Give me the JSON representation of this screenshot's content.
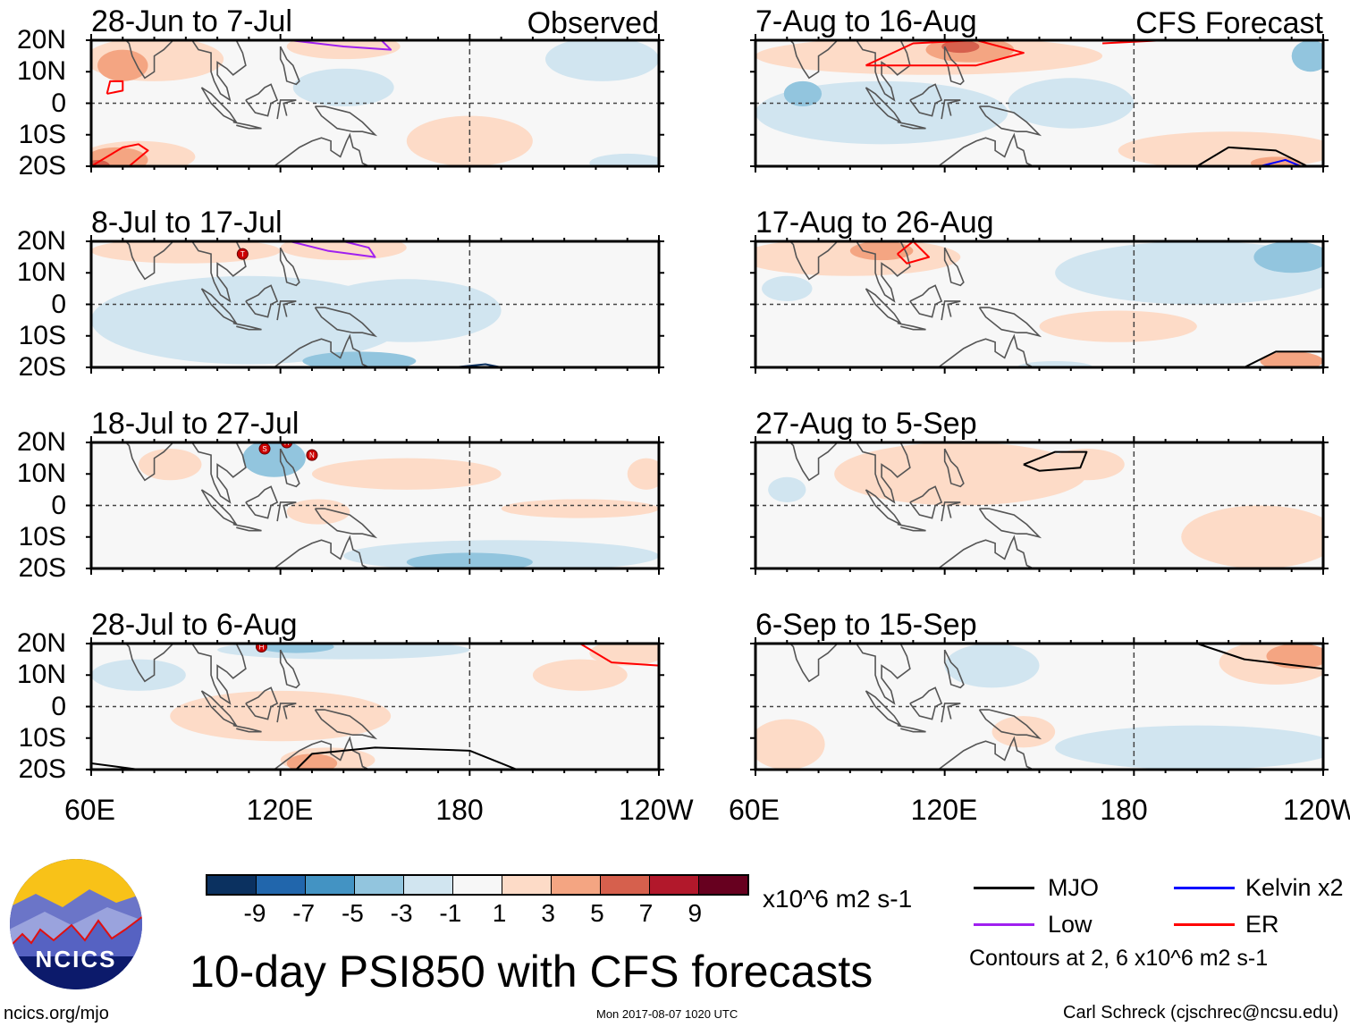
{
  "chart_data": {
    "type": "heatmap",
    "title": "10-day PSI850 with CFS forecasts",
    "units": "x10^6 m2 s-1",
    "lon_range": [
      60,
      240
    ],
    "lat_range": [
      -20,
      20
    ],
    "lat_ticks": [
      "20N",
      "10N",
      "0",
      "10S",
      "20S"
    ],
    "lon_ticks": [
      "60E",
      "120E",
      "180",
      "120W"
    ],
    "lon_tick_values": [
      60,
      120,
      180,
      240
    ],
    "colorbar": {
      "labels": [
        "-9",
        "-7",
        "-5",
        "-3",
        "-1",
        "1",
        "3",
        "5",
        "7",
        "9"
      ],
      "colors": [
        "#0b3160",
        "#2166ac",
        "#4393c3",
        "#92c5de",
        "#d1e5f0",
        "#f7f7f7",
        "#fddbc7",
        "#f4a582",
        "#d6604d",
        "#b2182b",
        "#67001f"
      ]
    },
    "legend": {
      "items": [
        {
          "label": "MJO",
          "color": "#000000"
        },
        {
          "label": "Kelvin x2",
          "color": "#0000ff"
        },
        {
          "label": "Low",
          "color": "#a020f0"
        },
        {
          "label": "ER",
          "color": "#ff0000"
        }
      ],
      "note": "Contours at 2, 6 x10^6 m2 s-1"
    },
    "panels": [
      {
        "title": "28-Jun to 7-Jul",
        "tag": "Observed",
        "blobs": [
          [
            80,
            14,
            22,
            7,
            2
          ],
          [
            70,
            12,
            8,
            5,
            4
          ],
          [
            75,
            -17,
            18,
            5,
            2
          ],
          [
            68,
            -18,
            10,
            4,
            4
          ],
          [
            62,
            -20,
            4,
            2,
            6
          ],
          [
            180,
            -12,
            20,
            8,
            2
          ],
          [
            140,
            5,
            16,
            6,
            -2
          ],
          [
            222,
            14,
            18,
            7,
            -2
          ],
          [
            230,
            -19,
            12,
            3,
            -2
          ],
          [
            140,
            18,
            18,
            4,
            2
          ]
        ],
        "contours": [
          {
            "c": "#a020f0",
            "pts": [
              [
                123,
                20
              ],
              [
                140,
                18
              ],
              [
                155,
                17
              ],
              [
                152,
                20
              ]
            ]
          },
          {
            "c": "#ff0000",
            "pts": [
              [
                65,
                3
              ],
              [
                70,
                4
              ],
              [
                70,
                7
              ],
              [
                66,
                7
              ],
              [
                65,
                3
              ]
            ]
          },
          {
            "c": "#ff0000",
            "pts": [
              [
                60,
                -20
              ],
              [
                70,
                -14
              ],
              [
                75,
                -13
              ],
              [
                78,
                -15
              ],
              [
                72,
                -20
              ]
            ]
          }
        ],
        "storms": []
      },
      {
        "title": "8-Jul to 17-Jul",
        "tag": "",
        "blobs": [
          [
            110,
            -5,
            50,
            14,
            -2
          ],
          [
            160,
            -2,
            30,
            10,
            -2
          ],
          [
            90,
            17,
            30,
            4,
            2
          ],
          [
            140,
            18,
            20,
            4,
            2
          ],
          [
            145,
            -18,
            18,
            3,
            -4
          ]
        ],
        "contours": [
          {
            "c": "#a020f0",
            "pts": [
              [
                123,
                20
              ],
              [
                135,
                17
              ],
              [
                150,
                15
              ],
              [
                148,
                18
              ],
              [
                140,
                20
              ]
            ]
          },
          {
            "c": "#0b3160",
            "pts": [
              [
                175,
                -20
              ],
              [
                185,
                -19
              ],
              [
                190,
                -20
              ]
            ]
          }
        ],
        "storms": [
          [
            108,
            16,
            "T"
          ]
        ]
      },
      {
        "title": "18-Jul to 27-Jul",
        "tag": "",
        "blobs": [
          [
            118,
            15,
            10,
            6,
            -3
          ],
          [
            160,
            10,
            30,
            5,
            2
          ],
          [
            190,
            -16,
            50,
            5,
            -2
          ],
          [
            180,
            -18,
            20,
            3,
            -4
          ],
          [
            132,
            -2,
            10,
            4,
            2
          ],
          [
            215,
            -1,
            25,
            3,
            2
          ],
          [
            85,
            13,
            10,
            5,
            2
          ],
          [
            236,
            10,
            6,
            5,
            2
          ]
        ],
        "contours": [],
        "storms": [
          [
            115,
            18,
            "S"
          ],
          [
            122,
            20,
            "H"
          ],
          [
            130,
            16,
            "N"
          ]
        ]
      },
      {
        "title": "28-Jul to 6-Aug",
        "tag": "",
        "blobs": [
          [
            140,
            18,
            40,
            3,
            -2
          ],
          [
            125,
            19,
            12,
            2,
            -4
          ],
          [
            120,
            -3,
            35,
            8,
            2
          ],
          [
            135,
            -17,
            15,
            4,
            2
          ],
          [
            130,
            -18,
            8,
            3,
            4
          ],
          [
            215,
            10,
            15,
            5,
            2
          ],
          [
            230,
            17,
            12,
            4,
            2
          ],
          [
            75,
            10,
            15,
            5,
            -2
          ]
        ],
        "contours": [
          {
            "c": "#000000",
            "pts": [
              [
                125,
                -20
              ],
              [
                130,
                -15
              ],
              [
                150,
                -13
              ],
              [
                180,
                -14
              ],
              [
                195,
                -20
              ]
            ]
          },
          {
            "c": "#ff0000",
            "pts": [
              [
                215,
                20
              ],
              [
                225,
                14
              ],
              [
                240,
                13
              ]
            ]
          },
          {
            "c": "#000000",
            "pts": [
              [
                60,
                -18
              ],
              [
                75,
                -20
              ]
            ]
          }
        ],
        "storms": [
          [
            114,
            19,
            "H"
          ]
        ]
      },
      {
        "title": "7-Aug to 16-Aug",
        "tag": "CFS Forecast",
        "blobs": [
          [
            100,
            -3,
            40,
            10,
            -2
          ],
          [
            75,
            3,
            6,
            4,
            -4
          ],
          [
            160,
            0,
            20,
            8,
            -2
          ],
          [
            115,
            15,
            55,
            6,
            2
          ],
          [
            128,
            17,
            14,
            4,
            4
          ],
          [
            125,
            18,
            6,
            2,
            6
          ],
          [
            210,
            -15,
            35,
            6,
            2
          ],
          [
            225,
            -19,
            8,
            2,
            5
          ],
          [
            236,
            15,
            6,
            5,
            -3
          ]
        ],
        "contours": [
          {
            "c": "#ff0000",
            "pts": [
              [
                95,
                12
              ],
              [
                110,
                19
              ],
              [
                130,
                20
              ],
              [
                145,
                16
              ],
              [
                130,
                12
              ],
              [
                95,
                12
              ]
            ]
          },
          {
            "c": "#000000",
            "pts": [
              [
                200,
                -20
              ],
              [
                210,
                -14
              ],
              [
                225,
                -15
              ],
              [
                235,
                -20
              ]
            ]
          },
          {
            "c": "#0000ff",
            "pts": [
              [
                220,
                -20
              ],
              [
                228,
                -18
              ],
              [
                233,
                -20
              ]
            ]
          },
          {
            "c": "#ff0000",
            "pts": [
              [
                170,
                19
              ],
              [
                190,
                20
              ]
            ]
          }
        ],
        "storms": []
      },
      {
        "title": "17-Aug to 26-Aug",
        "tag": "",
        "blobs": [
          [
            90,
            15,
            35,
            6,
            2
          ],
          [
            100,
            17,
            10,
            3,
            4
          ],
          [
            200,
            10,
            45,
            10,
            -2
          ],
          [
            230,
            15,
            12,
            5,
            -4
          ],
          [
            175,
            -7,
            25,
            5,
            2
          ],
          [
            230,
            -18,
            10,
            3,
            4
          ],
          [
            70,
            5,
            8,
            4,
            -2
          ],
          [
            155,
            -20,
            12,
            2,
            -2
          ]
        ],
        "contours": [
          {
            "c": "#ff0000",
            "pts": [
              [
                105,
                16
              ],
              [
                110,
                20
              ],
              [
                115,
                15
              ],
              [
                108,
                13
              ],
              [
                105,
                16
              ]
            ]
          },
          {
            "c": "#000000",
            "pts": [
              [
                215,
                -20
              ],
              [
                225,
                -15
              ],
              [
                240,
                -15
              ]
            ]
          }
        ],
        "storms": []
      },
      {
        "title": "27-Aug to 5-Sep",
        "tag": "",
        "blobs": [
          [
            125,
            10,
            40,
            10,
            2
          ],
          [
            70,
            5,
            6,
            4,
            -2
          ],
          [
            220,
            -10,
            25,
            10,
            2
          ],
          [
            165,
            13,
            12,
            5,
            2
          ]
        ],
        "contours": [
          {
            "c": "#000000",
            "pts": [
              [
                145,
                13
              ],
              [
                155,
                17
              ],
              [
                165,
                17
              ],
              [
                163,
                12
              ],
              [
                150,
                11
              ],
              [
                145,
                13
              ]
            ]
          }
        ],
        "storms": []
      },
      {
        "title": "6-Sep to 15-Sep",
        "tag": "",
        "blobs": [
          [
            225,
            14,
            18,
            7,
            2
          ],
          [
            232,
            16,
            10,
            4,
            4
          ],
          [
            135,
            13,
            15,
            7,
            -2
          ],
          [
            200,
            -13,
            45,
            7,
            -2
          ],
          [
            70,
            -12,
            12,
            8,
            2
          ],
          [
            145,
            -8,
            10,
            5,
            2
          ]
        ],
        "contours": [
          {
            "c": "#000000",
            "pts": [
              [
                200,
                20
              ],
              [
                215,
                15
              ],
              [
                240,
                12
              ]
            ]
          }
        ],
        "storms": []
      }
    ]
  },
  "footer": {
    "logo_text": "NCICS",
    "url": "ncics.org/mjo",
    "timestamp": "Mon 2017-08-07 1020 UTC",
    "credit": "Carl Schreck (cjschrec@ncsu.edu)"
  }
}
